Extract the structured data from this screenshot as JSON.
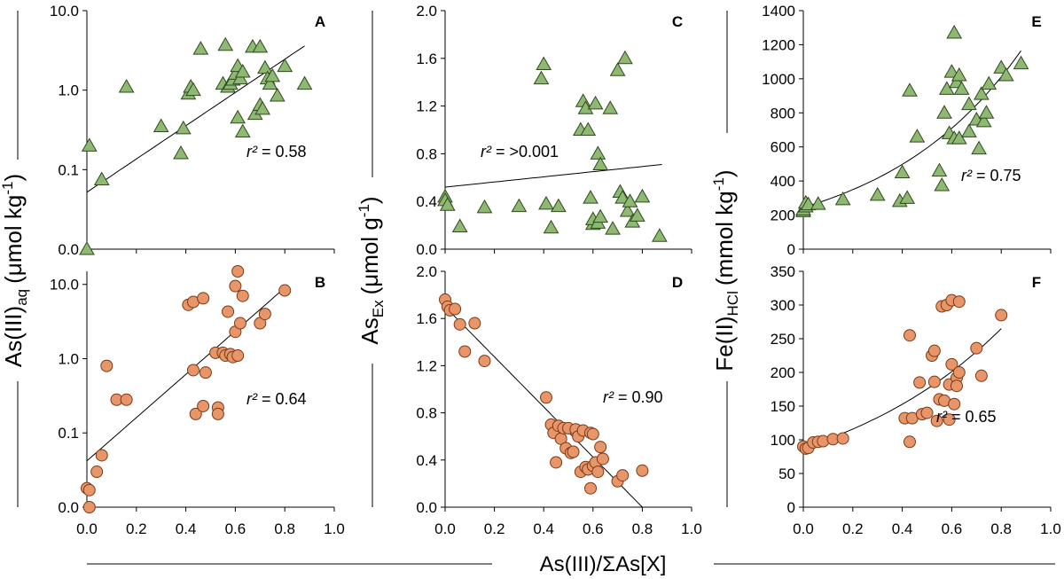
{
  "figure": {
    "x_title": "As(III)/ΣAs[X]",
    "y_titles": {
      "col1": {
        "main": "As(III)",
        "sub": "aq",
        "unit": "(μmol kg",
        "unit_sup": "-1",
        "unit_close": ")"
      },
      "col2": {
        "main": "As",
        "sub": "Ex",
        "unit": "(μmol g",
        "unit_sup": "-1",
        "unit_close": ")"
      },
      "col3": {
        "main": "Fe(II)",
        "sub": "HCl",
        "unit": "(mmol kg",
        "unit_sup": "-1",
        "unit_close": ")"
      }
    },
    "x_ticks": [
      0.0,
      0.2,
      0.4,
      0.6,
      0.8,
      1.0
    ],
    "x_tick_labels": [
      "0.0",
      "0.2",
      "0.4",
      "0.6",
      "0.8",
      "1.0"
    ],
    "colors": {
      "triangle_fill": "#8fb872",
      "triangle_stroke": "#2e4a1f",
      "circle_fill": "#e8956a",
      "circle_stroke": "#7a3a16",
      "line": "#000000"
    }
  },
  "chart_data": [
    {
      "panel": "A",
      "type": "scatter",
      "marker": "triangle",
      "scale": "log",
      "ylim": [
        0.01,
        10
      ],
      "y_ticks": [
        0.01,
        0.1,
        1,
        10
      ],
      "y_tick_labels": [
        "0.0",
        "0.1",
        "1.0",
        "10.0"
      ],
      "r2_label": "r² = 0.58",
      "fit": {
        "kind": "exp",
        "x": [
          0.0,
          0.88
        ],
        "y": [
          0.052,
          3.6
        ]
      },
      "points": [
        [
          0.0,
          0.01
        ],
        [
          0.01,
          0.2
        ],
        [
          0.06,
          0.075
        ],
        [
          0.16,
          1.1
        ],
        [
          0.3,
          0.35
        ],
        [
          0.38,
          0.16
        ],
        [
          0.39,
          0.33
        ],
        [
          0.41,
          0.9
        ],
        [
          0.42,
          1.1
        ],
        [
          0.43,
          1.0
        ],
        [
          0.46,
          3.3
        ],
        [
          0.55,
          1.2
        ],
        [
          0.56,
          3.7
        ],
        [
          0.57,
          1.1
        ],
        [
          0.58,
          1.2
        ],
        [
          0.59,
          1.35
        ],
        [
          0.6,
          1.6
        ],
        [
          0.61,
          0.45
        ],
        [
          0.61,
          2.0
        ],
        [
          0.62,
          1.4
        ],
        [
          0.63,
          1.7
        ],
        [
          0.63,
          0.3
        ],
        [
          0.67,
          3.5
        ],
        [
          0.68,
          0.5
        ],
        [
          0.7,
          0.65
        ],
        [
          0.7,
          3.5
        ],
        [
          0.71,
          0.58
        ],
        [
          0.72,
          1.9
        ],
        [
          0.73,
          1.4
        ],
        [
          0.74,
          1.2
        ],
        [
          0.75,
          1.5
        ],
        [
          0.77,
          0.85
        ],
        [
          0.8,
          2.0
        ],
        [
          0.88,
          1.2
        ]
      ]
    },
    {
      "panel": "B",
      "type": "scatter",
      "marker": "circle",
      "scale": "log",
      "ylim": [
        0.01,
        15
      ],
      "y_ticks": [
        0.01,
        0.1,
        1,
        10
      ],
      "y_tick_labels": [
        "0.0",
        "0.1",
        "1.0",
        "10.0"
      ],
      "r2_label": "r² = 0.64",
      "fit": {
        "kind": "exp",
        "x": [
          0.0,
          0.8
        ],
        "y": [
          0.042,
          9.0
        ]
      },
      "points": [
        [
          0.0,
          0.018
        ],
        [
          0.01,
          0.017
        ],
        [
          0.01,
          0.01
        ],
        [
          0.04,
          0.03
        ],
        [
          0.06,
          0.05
        ],
        [
          0.08,
          0.8
        ],
        [
          0.12,
          0.28
        ],
        [
          0.16,
          0.28
        ],
        [
          0.41,
          5.3
        ],
        [
          0.43,
          5.8
        ],
        [
          0.43,
          0.7
        ],
        [
          0.44,
          0.18
        ],
        [
          0.47,
          6.5
        ],
        [
          0.47,
          0.23
        ],
        [
          0.48,
          0.65
        ],
        [
          0.52,
          1.2
        ],
        [
          0.53,
          0.22
        ],
        [
          0.53,
          0.18
        ],
        [
          0.55,
          1.2
        ],
        [
          0.56,
          1.1
        ],
        [
          0.57,
          4.3
        ],
        [
          0.58,
          1.15
        ],
        [
          0.59,
          1.05
        ],
        [
          0.6,
          2.3
        ],
        [
          0.6,
          9.5
        ],
        [
          0.61,
          15.0
        ],
        [
          0.61,
          1.1
        ],
        [
          0.62,
          3.0
        ],
        [
          0.63,
          7.0
        ],
        [
          0.7,
          3.0
        ],
        [
          0.72,
          4.0
        ],
        [
          0.8,
          8.3
        ]
      ]
    },
    {
      "panel": "C",
      "type": "scatter",
      "marker": "triangle",
      "scale": "linear",
      "ylim": [
        0.0,
        2.0
      ],
      "y_ticks": [
        0.0,
        0.4,
        0.8,
        1.2,
        1.6,
        2.0
      ],
      "y_tick_labels": [
        "0.0",
        "0.4",
        "0.8",
        "1.2",
        "1.6",
        "2.0"
      ],
      "r2_label": "r² = >0.001",
      "fit": {
        "kind": "linear",
        "x": [
          0.0,
          0.88
        ],
        "y": [
          0.52,
          0.71
        ]
      },
      "points": [
        [
          0.0,
          0.44
        ],
        [
          0.0,
          0.41
        ],
        [
          0.01,
          0.37
        ],
        [
          0.06,
          0.19
        ],
        [
          0.16,
          0.35
        ],
        [
          0.3,
          0.36
        ],
        [
          0.39,
          1.43
        ],
        [
          0.4,
          1.55
        ],
        [
          0.41,
          0.38
        ],
        [
          0.43,
          0.18
        ],
        [
          0.46,
          0.36
        ],
        [
          0.55,
          1.0
        ],
        [
          0.56,
          1.24
        ],
        [
          0.57,
          1.18
        ],
        [
          0.58,
          1.0
        ],
        [
          0.59,
          0.43
        ],
        [
          0.6,
          0.21
        ],
        [
          0.6,
          0.25
        ],
        [
          0.61,
          1.22
        ],
        [
          0.62,
          0.8
        ],
        [
          0.62,
          0.22
        ],
        [
          0.63,
          0.27
        ],
        [
          0.63,
          0.71
        ],
        [
          0.67,
          1.18
        ],
        [
          0.68,
          0.17
        ],
        [
          0.7,
          1.5
        ],
        [
          0.71,
          0.48
        ],
        [
          0.72,
          0.43
        ],
        [
          0.73,
          1.6
        ],
        [
          0.74,
          0.32
        ],
        [
          0.75,
          0.4
        ],
        [
          0.76,
          0.23
        ],
        [
          0.78,
          0.28
        ],
        [
          0.8,
          0.44
        ],
        [
          0.87,
          0.11
        ]
      ]
    },
    {
      "panel": "D",
      "type": "scatter",
      "marker": "circle",
      "scale": "linear",
      "ylim": [
        0.0,
        2.0
      ],
      "y_ticks": [
        0.0,
        0.4,
        0.8,
        1.2,
        1.6,
        2.0
      ],
      "y_tick_labels": [
        "0.0",
        "0.4",
        "0.8",
        "1.2",
        "1.6",
        "2.0"
      ],
      "r2_label": "r² = 0.90",
      "fit": {
        "kind": "linear",
        "x": [
          0.0,
          0.8
        ],
        "y": [
          1.7,
          0.0
        ]
      },
      "points": [
        [
          0.0,
          1.76
        ],
        [
          0.01,
          1.7
        ],
        [
          0.02,
          1.67
        ],
        [
          0.04,
          1.68
        ],
        [
          0.06,
          1.55
        ],
        [
          0.08,
          1.32
        ],
        [
          0.12,
          1.56
        ],
        [
          0.16,
          1.24
        ],
        [
          0.41,
          0.93
        ],
        [
          0.43,
          0.7
        ],
        [
          0.44,
          0.63
        ],
        [
          0.45,
          0.38
        ],
        [
          0.46,
          0.69
        ],
        [
          0.47,
          0.58
        ],
        [
          0.48,
          0.67
        ],
        [
          0.49,
          0.5
        ],
        [
          0.5,
          0.67
        ],
        [
          0.51,
          0.46
        ],
        [
          0.52,
          0.47
        ],
        [
          0.53,
          0.66
        ],
        [
          0.54,
          0.6
        ],
        [
          0.55,
          0.3
        ],
        [
          0.56,
          0.65
        ],
        [
          0.57,
          0.34
        ],
        [
          0.58,
          0.32
        ],
        [
          0.59,
          0.63
        ],
        [
          0.59,
          0.16
        ],
        [
          0.6,
          0.62
        ],
        [
          0.6,
          0.35
        ],
        [
          0.61,
          0.38
        ],
        [
          0.62,
          0.3
        ],
        [
          0.63,
          0.51
        ],
        [
          0.64,
          0.41
        ],
        [
          0.7,
          0.22
        ],
        [
          0.72,
          0.27
        ],
        [
          0.8,
          0.31
        ]
      ]
    },
    {
      "panel": "E",
      "type": "scatter",
      "marker": "triangle",
      "scale": "linear",
      "ylim": [
        0,
        1400
      ],
      "y_ticks": [
        0,
        200,
        400,
        600,
        800,
        1000,
        1200,
        1400
      ],
      "y_tick_labels": [
        "0",
        "200",
        "400",
        "600",
        "800",
        "1000",
        "1200",
        "1400"
      ],
      "r2_label": "r² = 0.75",
      "fit": {
        "kind": "exp",
        "x": [
          0.0,
          0.88
        ],
        "y": [
          245,
          1165
        ]
      },
      "points": [
        [
          0.0,
          222
        ],
        [
          0.0,
          232
        ],
        [
          0.01,
          250
        ],
        [
          0.01,
          272
        ],
        [
          0.02,
          262
        ],
        [
          0.06,
          265
        ],
        [
          0.16,
          292
        ],
        [
          0.3,
          318
        ],
        [
          0.39,
          282
        ],
        [
          0.4,
          450
        ],
        [
          0.42,
          300
        ],
        [
          0.43,
          930
        ],
        [
          0.46,
          660
        ],
        [
          0.55,
          460
        ],
        [
          0.56,
          375
        ],
        [
          0.57,
          800
        ],
        [
          0.58,
          940
        ],
        [
          0.59,
          680
        ],
        [
          0.6,
          1040
        ],
        [
          0.61,
          650
        ],
        [
          0.61,
          1270
        ],
        [
          0.62,
          980
        ],
        [
          0.63,
          650
        ],
        [
          0.63,
          1020
        ],
        [
          0.64,
          940
        ],
        [
          0.67,
          690
        ],
        [
          0.67,
          850
        ],
        [
          0.7,
          760
        ],
        [
          0.71,
          590
        ],
        [
          0.72,
          910
        ],
        [
          0.73,
          750
        ],
        [
          0.74,
          800
        ],
        [
          0.75,
          970
        ],
        [
          0.8,
          1065
        ],
        [
          0.82,
          1020
        ],
        [
          0.88,
          1090
        ]
      ]
    },
    {
      "panel": "F",
      "type": "scatter",
      "marker": "circle",
      "scale": "linear",
      "ylim": [
        0,
        350
      ],
      "y_ticks": [
        0,
        50,
        100,
        150,
        200,
        250,
        300,
        350
      ],
      "y_tick_labels": [
        "0",
        "50",
        "100",
        "150",
        "200",
        "250",
        "300",
        "350"
      ],
      "r2_label": "r² = 0.65",
      "fit": {
        "kind": "exp",
        "x": [
          0.0,
          0.8
        ],
        "y": [
          88,
          265
        ]
      },
      "points": [
        [
          0.0,
          90
        ],
        [
          0.01,
          87
        ],
        [
          0.02,
          88
        ],
        [
          0.04,
          96
        ],
        [
          0.06,
          97
        ],
        [
          0.08,
          98
        ],
        [
          0.12,
          101
        ],
        [
          0.16,
          102
        ],
        [
          0.41,
          132
        ],
        [
          0.43,
          255
        ],
        [
          0.43,
          97
        ],
        [
          0.44,
          132
        ],
        [
          0.47,
          185
        ],
        [
          0.48,
          138
        ],
        [
          0.5,
          140
        ],
        [
          0.52,
          225
        ],
        [
          0.53,
          186
        ],
        [
          0.53,
          232
        ],
        [
          0.54,
          128
        ],
        [
          0.55,
          160
        ],
        [
          0.56,
          298
        ],
        [
          0.57,
          158
        ],
        [
          0.58,
          300
        ],
        [
          0.59,
          130
        ],
        [
          0.59,
          182
        ],
        [
          0.6,
          307
        ],
        [
          0.6,
          212
        ],
        [
          0.61,
          153
        ],
        [
          0.62,
          192
        ],
        [
          0.62,
          180
        ],
        [
          0.63,
          305
        ],
        [
          0.63,
          200
        ],
        [
          0.7,
          236
        ],
        [
          0.72,
          195
        ],
        [
          0.8,
          285
        ]
      ]
    }
  ]
}
